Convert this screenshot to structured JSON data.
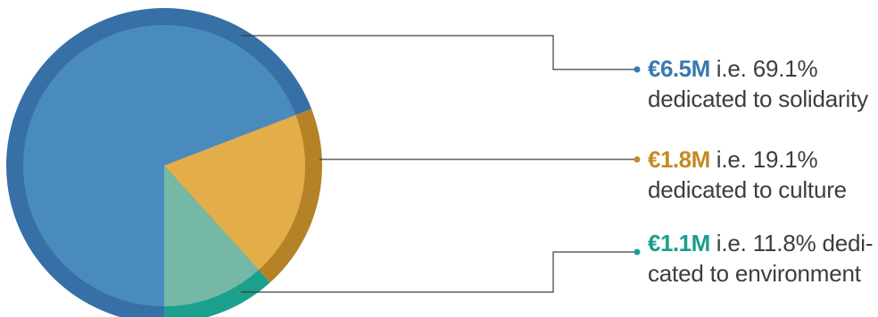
{
  "chart_data": {
    "type": "pie",
    "slices": [
      {
        "amount": "€6.5M",
        "value": 6.5,
        "percent": 69.1,
        "line1": "i.e. 69.1%",
        "line2": "dedicated to solidarity",
        "color": "#4a8bbd",
        "ring_color": "#3670a6",
        "amount_color": "#3a78b0"
      },
      {
        "amount": "€1.8M",
        "value": 1.8,
        "percent": 19.1,
        "line1": "i.e. 19.1%",
        "line2": "dedicated to culture",
        "color": "#e3ad4a",
        "ring_color": "#b58227",
        "amount_color": "#c58b22"
      },
      {
        "amount": "€1.1M",
        "value": 1.1,
        "percent": 11.8,
        "line1": "i.e. 11.8% dedi-",
        "line2": "cated to environment",
        "color": "#75b8a6",
        "ring_color": "#1ca08e",
        "amount_color": "#1a9f8c"
      }
    ],
    "leader_line_color": "#3d3d3d"
  }
}
